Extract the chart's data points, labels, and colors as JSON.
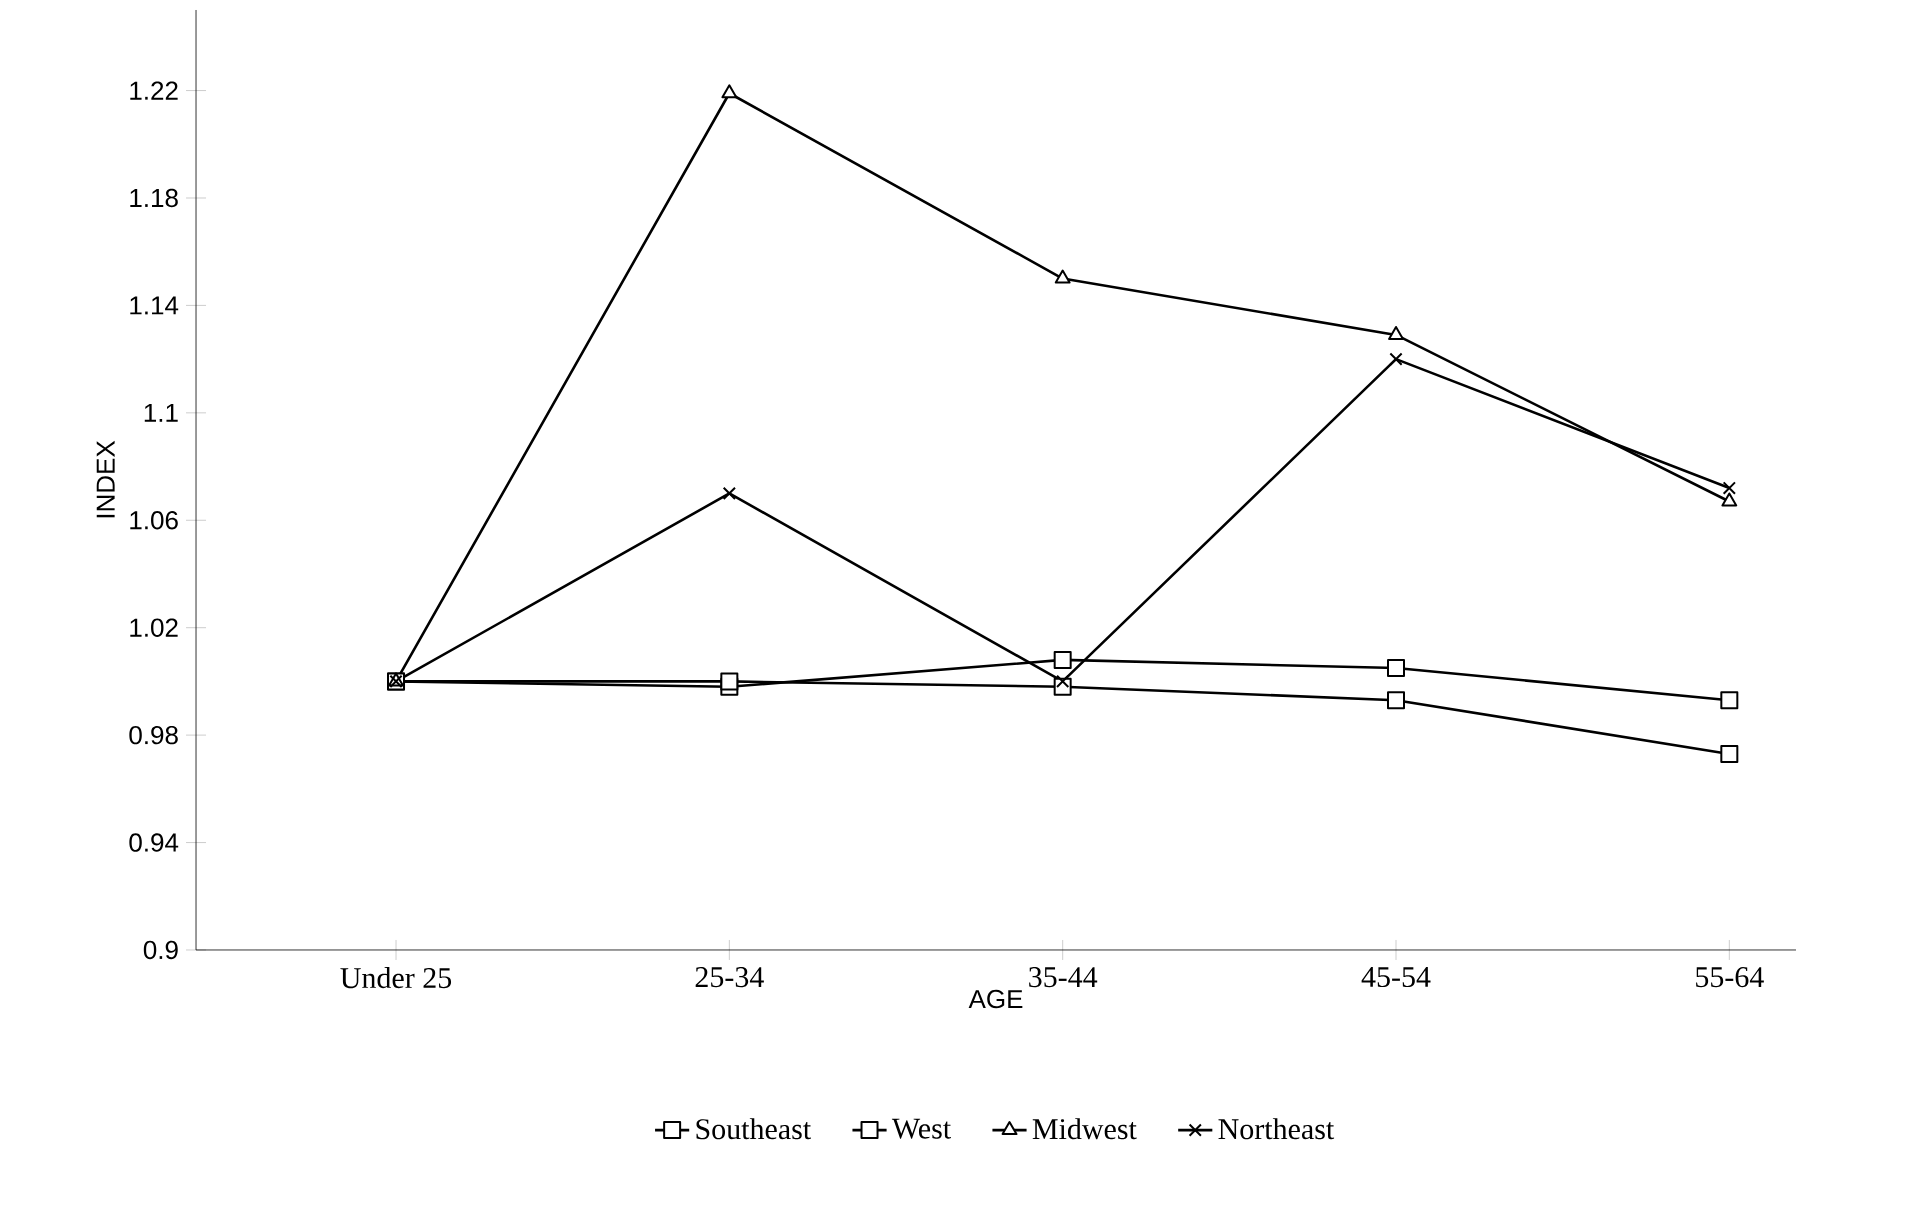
{
  "chart_data": {
    "type": "line",
    "xlabel": "AGE",
    "ylabel": "INDEX",
    "categories": [
      "Under 25",
      "25-34",
      "35-44",
      "45-54",
      "55-64"
    ],
    "ylim": [
      0.9,
      1.25
    ],
    "yticks": [
      0.9,
      0.94,
      0.98,
      1.02,
      1.06,
      1.1,
      1.14,
      1.18,
      1.22
    ],
    "legend": "bottom",
    "line_style": "solid",
    "series": [
      {
        "name": "Southeast",
        "color": "#000000",
        "marker": "square",
        "values": [
          1.0,
          0.998,
          1.008,
          1.005,
          0.993
        ]
      },
      {
        "name": "West",
        "color": "#000000",
        "marker": "square",
        "values": [
          1.0,
          1.0,
          0.998,
          0.993,
          0.973
        ]
      },
      {
        "name": "Midwest",
        "color": "#000000",
        "marker": "triangle",
        "values": [
          1.0,
          1.219,
          1.15,
          1.129,
          1.067
        ]
      },
      {
        "name": "Northeast",
        "color": "#000000",
        "marker": "cross",
        "values": [
          1.0,
          1.07,
          1.0,
          1.12,
          1.072
        ]
      }
    ]
  }
}
